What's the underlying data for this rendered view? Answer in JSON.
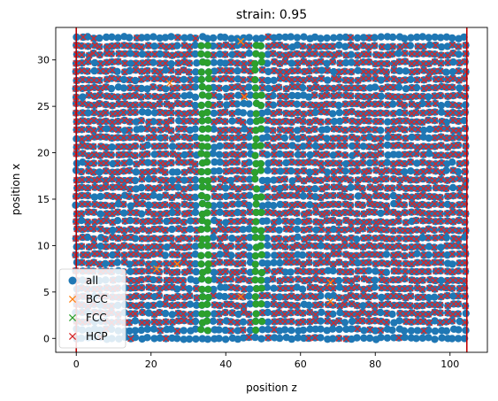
{
  "chart_data": {
    "type": "scatter",
    "title": "strain: 0.95",
    "xlabel": "position z",
    "ylabel": "position x",
    "xlim": [
      -5.5,
      110
    ],
    "ylim": [
      -1.5,
      33.5
    ],
    "xticks": [
      0,
      20,
      40,
      60,
      80,
      100
    ],
    "yticks": [
      0,
      5,
      10,
      15,
      20,
      25,
      30
    ],
    "grid": false,
    "legend": {
      "placement": "lower-left",
      "entries": [
        "all",
        "BCC",
        "FCC",
        "HCP"
      ]
    },
    "vertical_lines": [
      0,
      104.5
    ],
    "lattice": {
      "z_range": [
        0,
        104.5
      ],
      "x_range": [
        0,
        32.5
      ],
      "x_spacing": 0.9,
      "z_spacing": 1.6
    },
    "series": [
      {
        "name": "all",
        "marker": "circle",
        "color": "#1f77b4",
        "description_of_distribution": "dense lattice filling z 0–104.5, x 0–32.5"
      },
      {
        "name": "BCC",
        "marker": "x",
        "color": "#ff7f0e",
        "sample_points": [
          [
            21.5,
            7.5
          ],
          [
            27,
            8
          ],
          [
            44,
            4.5
          ],
          [
            68,
            6
          ],
          [
            68,
            4
          ],
          [
            44,
            32
          ],
          [
            25,
            27.5
          ],
          [
            45,
            26
          ]
        ]
      },
      {
        "name": "FCC",
        "marker": "x",
        "color": "#2ca02c",
        "bands_z": [
          34.5,
          48.5
        ],
        "x_range": [
          1,
          32
        ]
      },
      {
        "name": "HCP",
        "marker": "x",
        "color": "#d62728",
        "description_of_distribution": "covers most of the lattice except the FCC columns"
      }
    ],
    "colors": {
      "vline": "#c00000",
      "axes": "#000000"
    }
  }
}
